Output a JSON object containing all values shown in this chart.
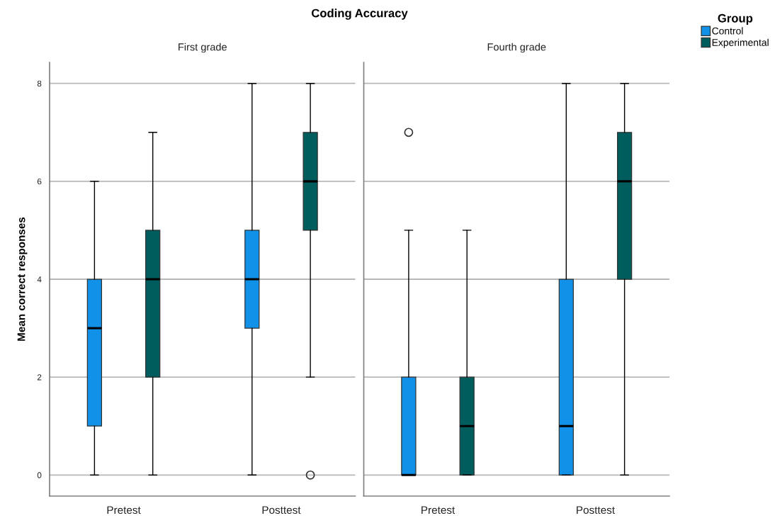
{
  "chart_data": [
    {
      "type": "box",
      "title": "Coding Accuracy",
      "subtitle": "First grade",
      "ylabel": "Mean correct responses",
      "categories": [
        "Pretest",
        "Posttest"
      ],
      "series": [
        {
          "name": "Control",
          "color": "#1192e8",
          "boxes": [
            {
              "low": 0,
              "q1": 1,
              "median": 3,
              "q3": 4,
              "high": 6
            },
            {
              "low": 0,
              "q1": 3,
              "median": 4,
              "q3": 5,
              "high": 8
            }
          ]
        },
        {
          "name": "Experimental",
          "color": "#005d5d",
          "boxes": [
            {
              "low": 0,
              "q1": 2,
              "median": 4,
              "q3": 5,
              "high": 7
            },
            {
              "low": 2,
              "q1": 5,
              "median": 6,
              "q3": 7,
              "high": 8,
              "outliers": [
                0
              ]
            }
          ]
        }
      ],
      "ylim": [
        -0.43,
        8.43
      ],
      "yticks": [
        0,
        2,
        4,
        6,
        8
      ],
      "grid": "y",
      "legend": "top right",
      "legend_title": "Group"
    },
    {
      "type": "box",
      "subtitle": "Fourth grade",
      "categories": [
        "Pretest",
        "Posttest"
      ],
      "series": [
        {
          "name": "Control",
          "color": "#1192e8",
          "boxes": [
            {
              "low": 0,
              "q1": 0,
              "median": 0,
              "q3": 2,
              "high": 5,
              "outliers": [
                7
              ]
            },
            {
              "low": 0,
              "q1": 0,
              "median": 1,
              "q3": 4,
              "high": 8
            }
          ]
        },
        {
          "name": "Experimental",
          "color": "#005d5d",
          "boxes": [
            {
              "low": 0,
              "q1": 0,
              "median": 1,
              "q3": 2,
              "high": 5
            },
            {
              "low": 0,
              "q1": 4,
              "median": 6,
              "q3": 7,
              "high": 8
            }
          ]
        }
      ],
      "ylim": [
        -0.43,
        8.43
      ],
      "yticks": [
        0,
        2,
        4,
        6,
        8
      ],
      "grid": "y",
      "tick_labels": "x",
      "legend": "top right"
    }
  ]
}
